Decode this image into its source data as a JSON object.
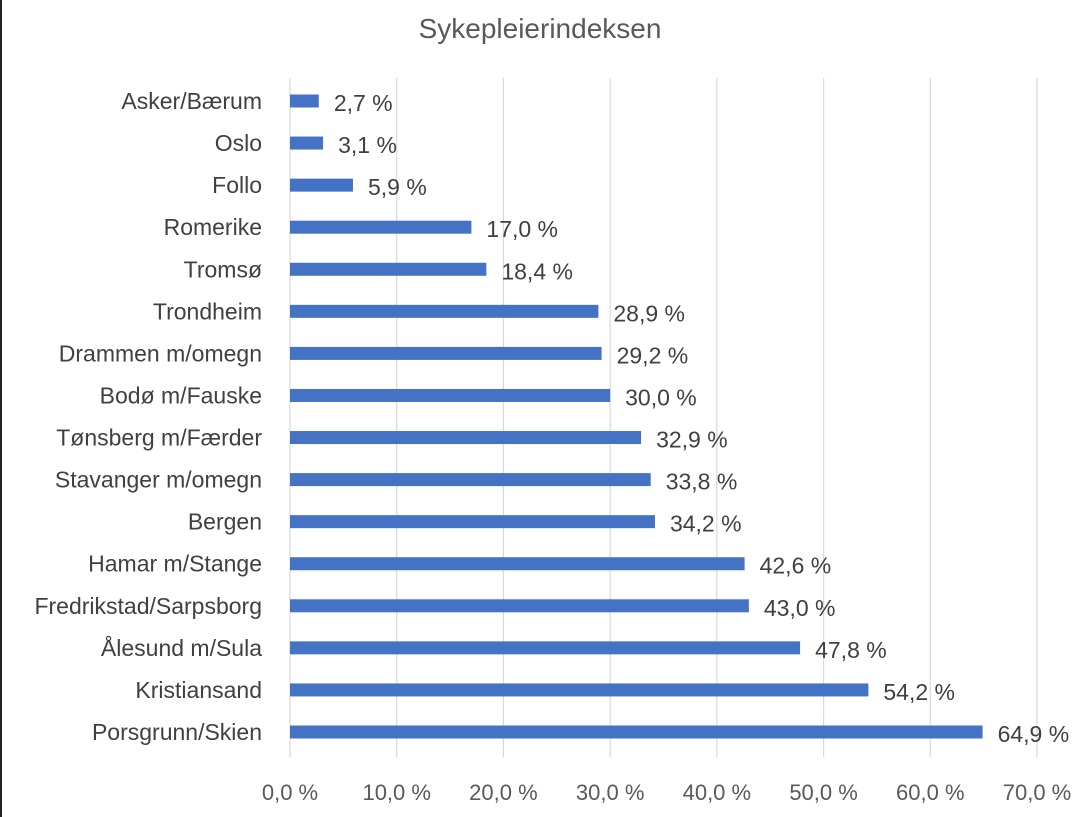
{
  "chart_data": {
    "type": "bar",
    "orientation": "horizontal",
    "title": "Sykepleierindeksen",
    "xlabel": "",
    "ylabel": "",
    "xlim": [
      0,
      70
    ],
    "xticks": [
      "0,0 %",
      "10,0 %",
      "20,0 %",
      "30,0 %",
      "40,0 %",
      "50,0 %",
      "60,0 %",
      "70,0 %"
    ],
    "grid": true,
    "legend": "none",
    "bar_color": "#4472C4",
    "categories": [
      "Asker/Bærum",
      "Oslo",
      "Follo",
      "Romerike",
      "Tromsø",
      "Trondheim",
      "Drammen m/omegn",
      "Bodø m/Fauske",
      "Tønsberg m/Færder",
      "Stavanger m/omegn",
      "Bergen",
      "Hamar m/Stange",
      "Fredrikstad/Sarpsborg",
      "Ålesund m/Sula",
      "Kristiansand",
      "Porsgrunn/Skien"
    ],
    "values": [
      2.7,
      3.1,
      5.9,
      17.0,
      18.4,
      28.9,
      29.2,
      30.0,
      32.9,
      33.8,
      34.2,
      42.6,
      43.0,
      47.8,
      54.2,
      64.9
    ],
    "data_labels": [
      "2,7 %",
      "3,1 %",
      "5,9 %",
      "17,0 %",
      "18,4 %",
      "28,9 %",
      "29,2 %",
      "30,0 %",
      "32,9 %",
      "33,8 %",
      "34,2 %",
      "42,6 %",
      "43,0 %",
      "47,8 %",
      "54,2 %",
      "64,9 %"
    ]
  }
}
